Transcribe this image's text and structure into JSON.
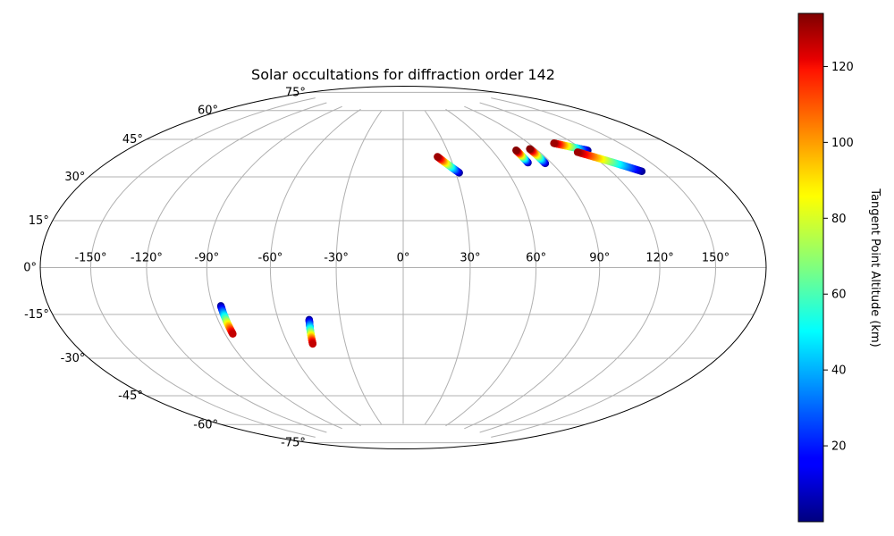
{
  "chart_data": {
    "type": "scatter",
    "projection": "hammer",
    "title": "Solar occultations for diffraction order 142",
    "xlabel": "",
    "ylabel": "",
    "grid": true,
    "longitude_ticks": [
      "-150°",
      "-120°",
      "-90°",
      "-60°",
      "-30°",
      "0°",
      "30°",
      "60°",
      "90°",
      "120°",
      "150°"
    ],
    "latitude_ticks": [
      "75°",
      "60°",
      "45°",
      "30°",
      "15°",
      "0°",
      "-15°",
      "-30°",
      "-45°",
      "-60°",
      "-75°"
    ],
    "colorbar": {
      "label": "Tangent Point Altitude (km)",
      "colormap": "jet",
      "range": [
        0,
        134
      ],
      "ticks": [
        "20",
        "40",
        "60",
        "80",
        "100",
        "120"
      ]
    },
    "series": [
      {
        "tracks": [
          {
            "start": {
              "lon": 22,
              "lat": 51,
              "alt": 130
            },
            "end": {
              "lon": 32,
              "lat": 43,
              "alt": 2
            }
          },
          {
            "start": {
              "lon": 76,
              "lat": 52,
              "alt": 133
            },
            "end": {
              "lon": 76,
              "lat": 46,
              "alt": 2
            }
          },
          {
            "start": {
              "lon": 86,
              "lat": 52,
              "alt": 133
            },
            "end": {
              "lon": 86,
              "lat": 45,
              "alt": 2
            }
          },
          {
            "start": {
              "lon": 107,
              "lat": 53,
              "alt": 130
            },
            "end": {
              "lon": 122,
              "lat": 48,
              "alt": 2
            }
          },
          {
            "start": {
              "lon": 114,
              "lat": 48,
              "alt": 130
            },
            "end": {
              "lon": 138,
              "lat": 37,
              "alt": 2
            }
          },
          {
            "start": {
              "lon": -86,
              "lat": -28,
              "alt": 125
            },
            "end": {
              "lon": -86,
              "lat": -16,
              "alt": 2
            }
          },
          {
            "start": {
              "lon": -47,
              "lat": -34,
              "alt": 125
            },
            "end": {
              "lon": -45,
              "lat": -23,
              "alt": 2
            }
          }
        ]
      }
    ]
  }
}
